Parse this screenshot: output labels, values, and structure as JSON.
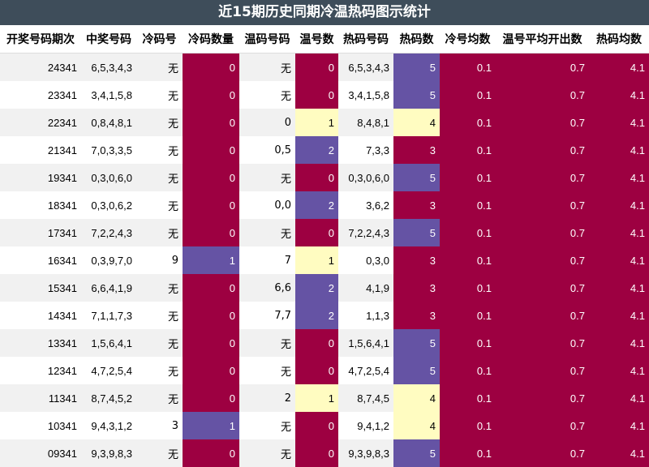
{
  "title": "近15期历史同期冷温热码图示统计",
  "colors": {
    "red": "#9d0041",
    "purple": "#6553a4",
    "yellow": "#fffcc1",
    "header": "#3e4d5a"
  },
  "headers": [
    "开奖号码期次",
    "中奖号码",
    "冷码号",
    "冷码数量",
    "温码号码",
    "温号数",
    "热码号码",
    "热码数",
    "冷号均数",
    "温号平均开出数",
    "热码均数"
  ],
  "rows": [
    [
      "24341",
      "6,5,3,4,3",
      "无",
      "0",
      "无",
      "0",
      "6,5,3,4,3",
      "5",
      "0.1",
      "0.7",
      "4.1"
    ],
    [
      "23341",
      "3,4,1,5,8",
      "无",
      "0",
      "无",
      "0",
      "3,4,1,5,8",
      "5",
      "0.1",
      "0.7",
      "4.1"
    ],
    [
      "22341",
      "0,8,4,8,1",
      "无",
      "0",
      "0",
      "1",
      "8,4,8,1",
      "4",
      "0.1",
      "0.7",
      "4.1"
    ],
    [
      "21341",
      "7,0,3,3,5",
      "无",
      "0",
      "0,5",
      "2",
      "7,3,3",
      "3",
      "0.1",
      "0.7",
      "4.1"
    ],
    [
      "19341",
      "0,3,0,6,0",
      "无",
      "0",
      "无",
      "0",
      "0,3,0,6,0",
      "5",
      "0.1",
      "0.7",
      "4.1"
    ],
    [
      "18341",
      "0,3,0,6,2",
      "无",
      "0",
      "0,0",
      "2",
      "3,6,2",
      "3",
      "0.1",
      "0.7",
      "4.1"
    ],
    [
      "17341",
      "7,2,2,4,3",
      "无",
      "0",
      "无",
      "0",
      "7,2,2,4,3",
      "5",
      "0.1",
      "0.7",
      "4.1"
    ],
    [
      "16341",
      "0,3,9,7,0",
      "9",
      "1",
      "7",
      "1",
      "0,3,0",
      "3",
      "0.1",
      "0.7",
      "4.1"
    ],
    [
      "15341",
      "6,6,4,1,9",
      "无",
      "0",
      "6,6",
      "2",
      "4,1,9",
      "3",
      "0.1",
      "0.7",
      "4.1"
    ],
    [
      "14341",
      "7,1,1,7,3",
      "无",
      "0",
      "7,7",
      "2",
      "1,1,3",
      "3",
      "0.1",
      "0.7",
      "4.1"
    ],
    [
      "13341",
      "1,5,6,4,1",
      "无",
      "0",
      "无",
      "0",
      "1,5,6,4,1",
      "5",
      "0.1",
      "0.7",
      "4.1"
    ],
    [
      "12341",
      "4,7,2,5,4",
      "无",
      "0",
      "无",
      "0",
      "4,7,2,5,4",
      "5",
      "0.1",
      "0.7",
      "4.1"
    ],
    [
      "11341",
      "8,7,4,5,2",
      "无",
      "0",
      "2",
      "1",
      "8,7,4,5",
      "4",
      "0.1",
      "0.7",
      "4.1"
    ],
    [
      "10341",
      "9,4,3,1,2",
      "3",
      "1",
      "无",
      "0",
      "9,4,1,2",
      "4",
      "0.1",
      "0.7",
      "4.1"
    ],
    [
      "09341",
      "9,3,9,8,3",
      "无",
      "0",
      "无",
      "0",
      "9,3,9,8,3",
      "5",
      "0.1",
      "0.7",
      "4.1"
    ]
  ]
}
